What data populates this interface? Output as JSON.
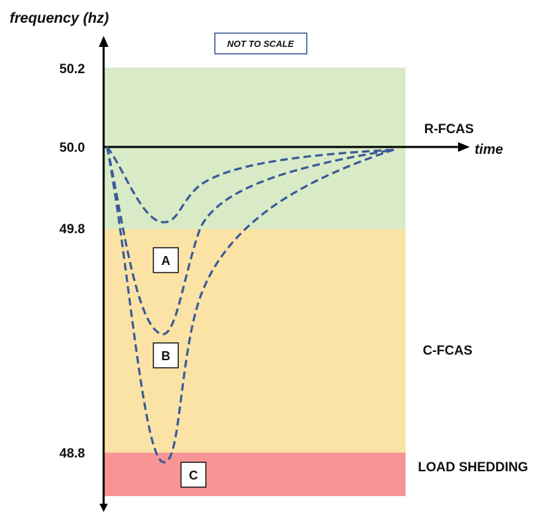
{
  "y_axis_label": "frequency (hz)",
  "x_axis_label": "time",
  "note": "NOT TO SCALE",
  "y_ticks": [
    "50.2",
    "50.0",
    "49.8",
    "48.8"
  ],
  "zones": [
    {
      "label": "R-FCAS",
      "color": "#d8ebc6"
    },
    {
      "label": "C-FCAS",
      "color": "#fbe3a6"
    },
    {
      "label": "LOAD SHEDDING",
      "color": "#f79595"
    }
  ],
  "curves": [
    {
      "label": "A"
    },
    {
      "label": "B"
    },
    {
      "label": "C"
    }
  ],
  "colors": {
    "curve": "#3a5a9a",
    "axis": "#000000",
    "note_border": "#2f4f8f"
  }
}
